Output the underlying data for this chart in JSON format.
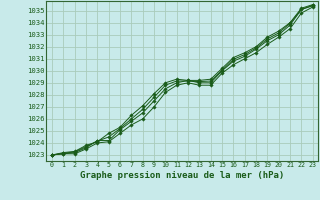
{
  "title": "Graphe pression niveau de la mer (hPa)",
  "bg_color": "#c8eaea",
  "grid_color": "#aaccbb",
  "line_color": "#1a5c1a",
  "xlim": [
    -0.5,
    23.5
  ],
  "ylim": [
    1022.5,
    1035.8
  ],
  "xticks": [
    0,
    1,
    2,
    3,
    4,
    5,
    6,
    7,
    8,
    9,
    10,
    11,
    12,
    13,
    14,
    15,
    16,
    17,
    18,
    19,
    20,
    21,
    22,
    23
  ],
  "yticks": [
    1023,
    1024,
    1025,
    1026,
    1027,
    1028,
    1029,
    1030,
    1031,
    1032,
    1033,
    1034,
    1035
  ],
  "series": [
    [
      1023.0,
      1023.2,
      1023.3,
      1023.8,
      1024.1,
      1024.8,
      1025.3,
      1026.3,
      1027.1,
      1028.1,
      1029.0,
      1029.3,
      1029.2,
      1029.2,
      1029.3,
      1030.2,
      1031.1,
      1031.5,
      1032.0,
      1032.8,
      1033.3,
      1034.0,
      1035.2,
      1035.5
    ],
    [
      1023.0,
      1023.1,
      1023.2,
      1023.6,
      1024.2,
      1024.2,
      1025.1,
      1025.8,
      1026.5,
      1027.5,
      1028.5,
      1029.0,
      1029.2,
      1029.0,
      1029.0,
      1030.0,
      1030.8,
      1031.2,
      1031.8,
      1032.5,
      1033.0,
      1033.8,
      1035.1,
      1035.4
    ],
    [
      1023.0,
      1023.1,
      1023.1,
      1023.5,
      1024.0,
      1024.1,
      1024.8,
      1025.5,
      1026.0,
      1027.0,
      1028.2,
      1028.8,
      1029.0,
      1028.8,
      1028.8,
      1029.8,
      1030.5,
      1031.0,
      1031.5,
      1032.2,
      1032.8,
      1033.5,
      1034.8,
      1035.3
    ],
    [
      1023.0,
      1023.15,
      1023.25,
      1023.7,
      1024.15,
      1024.5,
      1025.2,
      1026.0,
      1026.8,
      1027.8,
      1028.8,
      1029.15,
      1029.15,
      1029.1,
      1029.15,
      1030.05,
      1030.95,
      1031.35,
      1031.9,
      1032.65,
      1033.15,
      1033.95,
      1035.1,
      1035.45
    ]
  ],
  "ylabel_fontsize": 5.2,
  "xlabel_fontsize": 6.5,
  "xtick_fontsize": 4.8
}
